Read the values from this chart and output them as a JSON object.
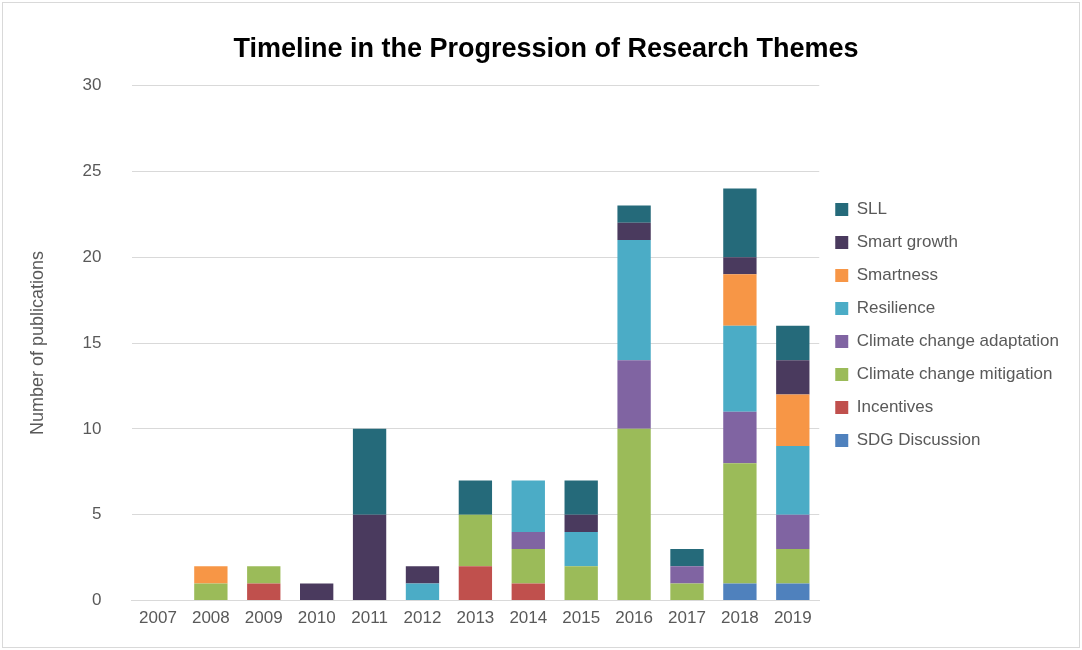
{
  "chart_data": {
    "type": "bar",
    "title": "Timeline in the Progression of Research Themes",
    "ylabel": "Number of publications",
    "categories": [
      "2007",
      "2008",
      "2009",
      "2010",
      "2011",
      "2012",
      "2013",
      "2014",
      "2015",
      "2016",
      "2017",
      "2018",
      "2019"
    ],
    "stacked": true,
    "ylim": [
      0,
      30
    ],
    "yticks": [
      0,
      5,
      10,
      15,
      20,
      25,
      30
    ],
    "grid": "y",
    "legend": "right",
    "series": [
      {
        "name": "SDG Discussion",
        "color": "#4f81bd",
        "values": [
          0,
          0,
          0,
          0,
          0,
          0,
          0,
          0,
          0,
          0,
          0,
          1,
          1
        ]
      },
      {
        "name": "Incentives",
        "color": "#c0504d",
        "values": [
          0,
          0,
          1,
          0,
          0,
          0,
          2,
          1,
          0,
          0,
          0,
          0,
          0
        ]
      },
      {
        "name": "Climate change mitigation",
        "color": "#9bbb59",
        "values": [
          0,
          1,
          1,
          0,
          0,
          0,
          3,
          2,
          2,
          10,
          1,
          7,
          2
        ]
      },
      {
        "name": "Climate change adaptation",
        "color": "#8064a2",
        "values": [
          0,
          0,
          0,
          0,
          0,
          0,
          0,
          1,
          0,
          4,
          1,
          3,
          2
        ]
      },
      {
        "name": "Resilience",
        "color": "#4bacc6",
        "values": [
          0,
          0,
          0,
          0,
          0,
          1,
          0,
          3,
          2,
          7,
          0,
          5,
          4
        ]
      },
      {
        "name": "Smartness",
        "color": "#f79646",
        "values": [
          0,
          1,
          0,
          0,
          0,
          0,
          0,
          0,
          0,
          0,
          0,
          3,
          3
        ]
      },
      {
        "name": "Smart growth",
        "color": "#4a3a5e",
        "values": [
          0,
          0,
          0,
          1,
          5,
          1,
          0,
          0,
          1,
          1,
          0,
          1,
          2
        ]
      },
      {
        "name": "SLL",
        "color": "#256a7a",
        "values": [
          0,
          0,
          0,
          0,
          5,
          0,
          2,
          0,
          2,
          1,
          1,
          4,
          2
        ]
      }
    ]
  }
}
